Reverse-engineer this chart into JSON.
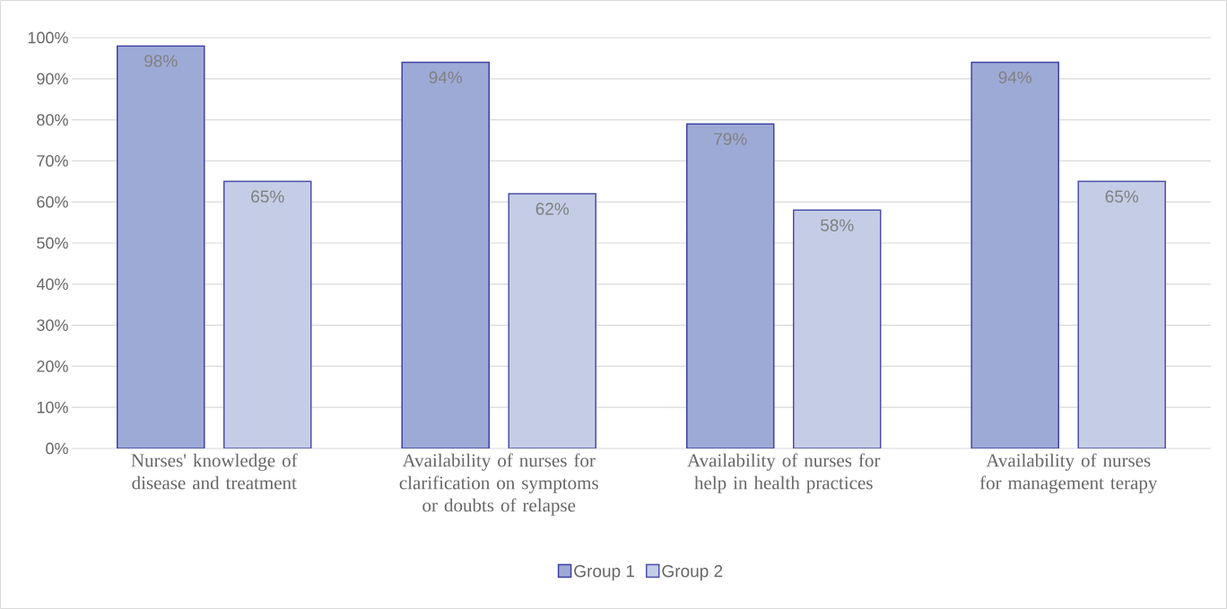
{
  "chart_data": {
    "type": "bar",
    "categories": [
      "Nurses' knowledge of disease and treatment",
      "Availability of nurses for clarification on symptoms or doubts of relapse",
      "Availability of nurses for help in health practices",
      "Availability of nurses for management terapy"
    ],
    "series": [
      {
        "name": "Group 1",
        "color": "#9eaad6",
        "values": [
          98,
          94,
          79,
          94
        ],
        "value_labels": [
          "98%",
          "94%",
          "79%",
          "94%"
        ]
      },
      {
        "name": "Group 2",
        "color": "#c5cde6",
        "values": [
          65,
          62,
          58,
          65
        ],
        "value_labels": [
          "65%",
          "62%",
          "58%",
          "65%"
        ]
      }
    ],
    "ylim": [
      0,
      100
    ],
    "yticks": [
      {
        "value": 0,
        "label": "0%"
      },
      {
        "value": 10,
        "label": "10%"
      },
      {
        "value": 20,
        "label": "20%"
      },
      {
        "value": 30,
        "label": "30%"
      },
      {
        "value": 40,
        "label": "40%"
      },
      {
        "value": 50,
        "label": "50%"
      },
      {
        "value": 60,
        "label": "60%"
      },
      {
        "value": 70,
        "label": "70%"
      },
      {
        "value": 80,
        "label": "80%"
      },
      {
        "value": 90,
        "label": "90%"
      },
      {
        "value": 100,
        "label": "100%"
      }
    ],
    "grid": "y",
    "legend": "bottom"
  }
}
